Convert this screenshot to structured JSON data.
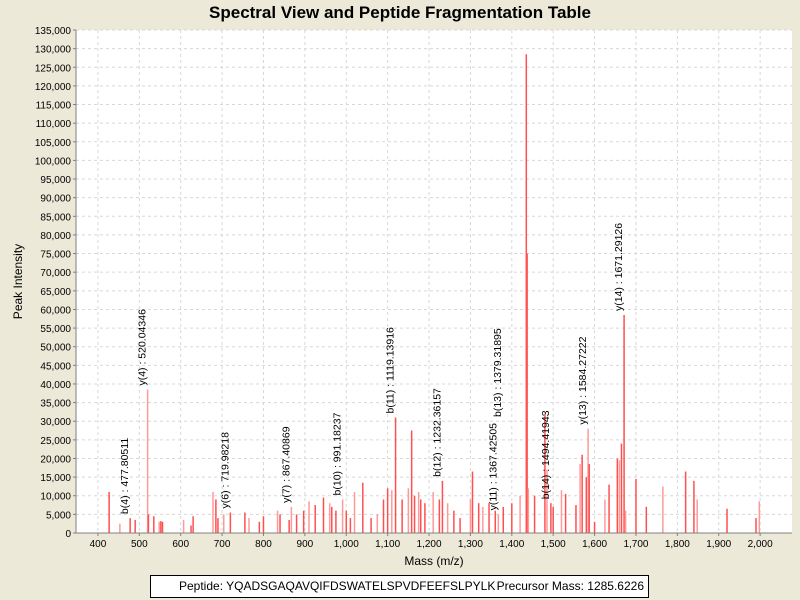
{
  "chart_data": {
    "type": "bar",
    "title": "Spectral View and Peptide Fragmentation Table",
    "xlabel": "Mass (m/z)",
    "ylabel": "Peak Intensity",
    "xlim": [
      347,
      2077
    ],
    "ylim": [
      0,
      135000
    ],
    "x_ticks": [
      400,
      500,
      600,
      700,
      800,
      900,
      1000,
      1100,
      1200,
      1300,
      1400,
      1500,
      1600,
      1700,
      1800,
      1900,
      2000
    ],
    "x_tick_labels": [
      "400",
      "500",
      "600",
      "700",
      "800",
      "900",
      "1,000",
      "1,100",
      "1,200",
      "1,300",
      "1,400",
      "1,500",
      "1,600",
      "1,700",
      "1,800",
      "1,900",
      "2,000"
    ],
    "y_ticks": [
      0,
      5000,
      10000,
      15000,
      20000,
      25000,
      30000,
      35000,
      40000,
      45000,
      50000,
      55000,
      60000,
      65000,
      70000,
      75000,
      80000,
      85000,
      90000,
      95000,
      100000,
      105000,
      110000,
      115000,
      120000,
      125000,
      130000,
      135000
    ],
    "y_tick_labels": [
      "0",
      "5,000",
      "10,000",
      "15,000",
      "20,000",
      "25,000",
      "30,000",
      "35,000",
      "40,000",
      "45,000",
      "50,000",
      "55,000",
      "60,000",
      "65,000",
      "70,000",
      "75,000",
      "80,000",
      "85,000",
      "90,000",
      "95,000",
      "100,000",
      "105,000",
      "110,000",
      "115,000",
      "120,000",
      "125,000",
      "130,000",
      "135,000"
    ],
    "grid": true,
    "colors": {
      "peak": "#ff5050",
      "peak_light": "#ff9a9a",
      "axis": "#808080",
      "grid": "#d8d8d8"
    },
    "peaks": [
      [
        427,
        11000
      ],
      [
        453,
        2500
      ],
      [
        477.8,
        4000
      ],
      [
        490,
        3500
      ],
      [
        520.04,
        38500
      ],
      [
        522,
        5000
      ],
      [
        535,
        4500
      ],
      [
        548,
        3000
      ],
      [
        552,
        3200
      ],
      [
        556,
        3000
      ],
      [
        607,
        3500
      ],
      [
        625,
        2000
      ],
      [
        630,
        4500
      ],
      [
        678,
        11000
      ],
      [
        685,
        9000
      ],
      [
        690,
        4000
      ],
      [
        704,
        5000
      ],
      [
        719.98,
        5500
      ],
      [
        755,
        5500
      ],
      [
        765,
        4000
      ],
      [
        790,
        3000
      ],
      [
        800,
        4500
      ],
      [
        834,
        6000
      ],
      [
        840,
        5000
      ],
      [
        862,
        3500
      ],
      [
        867.41,
        7000
      ],
      [
        880,
        5000
      ],
      [
        897,
        6000
      ],
      [
        910,
        8500
      ],
      [
        925,
        7500
      ],
      [
        945,
        9500
      ],
      [
        960,
        8000
      ],
      [
        965,
        7000
      ],
      [
        975,
        6000
      ],
      [
        991.18,
        9000
      ],
      [
        1000,
        6000
      ],
      [
        1010,
        4000
      ],
      [
        1020,
        11000
      ],
      [
        1040,
        13500
      ],
      [
        1060,
        4000
      ],
      [
        1075,
        5000
      ],
      [
        1090,
        9000
      ],
      [
        1100,
        12000
      ],
      [
        1110,
        11500
      ],
      [
        1119.14,
        31000
      ],
      [
        1135,
        9000
      ],
      [
        1150,
        12000
      ],
      [
        1158,
        27500
      ],
      [
        1165,
        10000
      ],
      [
        1175,
        11000
      ],
      [
        1180,
        9000
      ],
      [
        1190,
        8000
      ],
      [
        1210,
        11000
      ],
      [
        1225,
        9000
      ],
      [
        1232.36,
        14000
      ],
      [
        1245,
        8000
      ],
      [
        1260,
        6000
      ],
      [
        1275,
        4000
      ],
      [
        1300,
        9000
      ],
      [
        1305,
        16500
      ],
      [
        1320,
        8000
      ],
      [
        1330,
        7000
      ],
      [
        1345,
        8000
      ],
      [
        1360,
        6000
      ],
      [
        1367.43,
        5000
      ],
      [
        1379.32,
        7000
      ],
      [
        1400,
        8000
      ],
      [
        1420,
        10000
      ],
      [
        1435,
        128500
      ],
      [
        1437,
        75000
      ],
      [
        1440,
        12000
      ],
      [
        1455,
        10000
      ],
      [
        1480,
        32000
      ],
      [
        1485,
        17000
      ],
      [
        1494.42,
        8000
      ],
      [
        1500,
        7000
      ],
      [
        1520,
        11500
      ],
      [
        1530,
        10500
      ],
      [
        1555,
        7500
      ],
      [
        1565,
        18500
      ],
      [
        1570,
        21000
      ],
      [
        1580,
        15000
      ],
      [
        1584.27,
        28000
      ],
      [
        1587,
        18500
      ],
      [
        1600,
        3000
      ],
      [
        1625,
        9000
      ],
      [
        1635,
        13000
      ],
      [
        1655,
        20000
      ],
      [
        1660,
        19500
      ],
      [
        1665,
        24000
      ],
      [
        1671.29,
        58500
      ],
      [
        1675,
        6000
      ],
      [
        1700,
        14500
      ],
      [
        1725,
        7000
      ],
      [
        1765,
        12500
      ],
      [
        1820,
        16500
      ],
      [
        1840,
        14000
      ],
      [
        1848,
        9000
      ],
      [
        1920,
        6500
      ],
      [
        1990,
        4000
      ],
      [
        1998,
        8500
      ]
    ],
    "annotations": [
      {
        "label": "b(4) : 477.80511",
        "x": 477.8,
        "y": 4000
      },
      {
        "label": "y(4) : 520.04346",
        "x": 520.04,
        "y": 38500
      },
      {
        "label": "y(6) : 719.98218",
        "x": 719.98,
        "y": 5500
      },
      {
        "label": "y(7) : 867.40869",
        "x": 867.41,
        "y": 7000
      },
      {
        "label": "b(10) : 991.18237",
        "x": 991.18,
        "y": 9000
      },
      {
        "label": "b(11) : 1119.13916",
        "x": 1119.14,
        "y": 31000
      },
      {
        "label": "b(12) : 1232.36157",
        "x": 1232.36,
        "y": 14000
      },
      {
        "label": "y(11) : 1367.42505",
        "x": 1367.43,
        "y": 5000
      },
      {
        "label": "b(13) : 1379.31895",
        "x": 1379.32,
        "y": 7000
      },
      {
        "label": "b(14) : 1494.41943",
        "x": 1494.42,
        "y": 8000
      },
      {
        "label": "y(13) : 1584.27222",
        "x": 1584.27,
        "y": 28000
      },
      {
        "label": "y(14) : 1671.29126",
        "x": 1671.29,
        "y": 58500
      }
    ]
  },
  "info": {
    "peptide": "Peptide: YQADSGAQAVQIFDSWATELSPVDFEEFSLPYLK",
    "precursor": "Precursor Mass: 1285.6226"
  }
}
